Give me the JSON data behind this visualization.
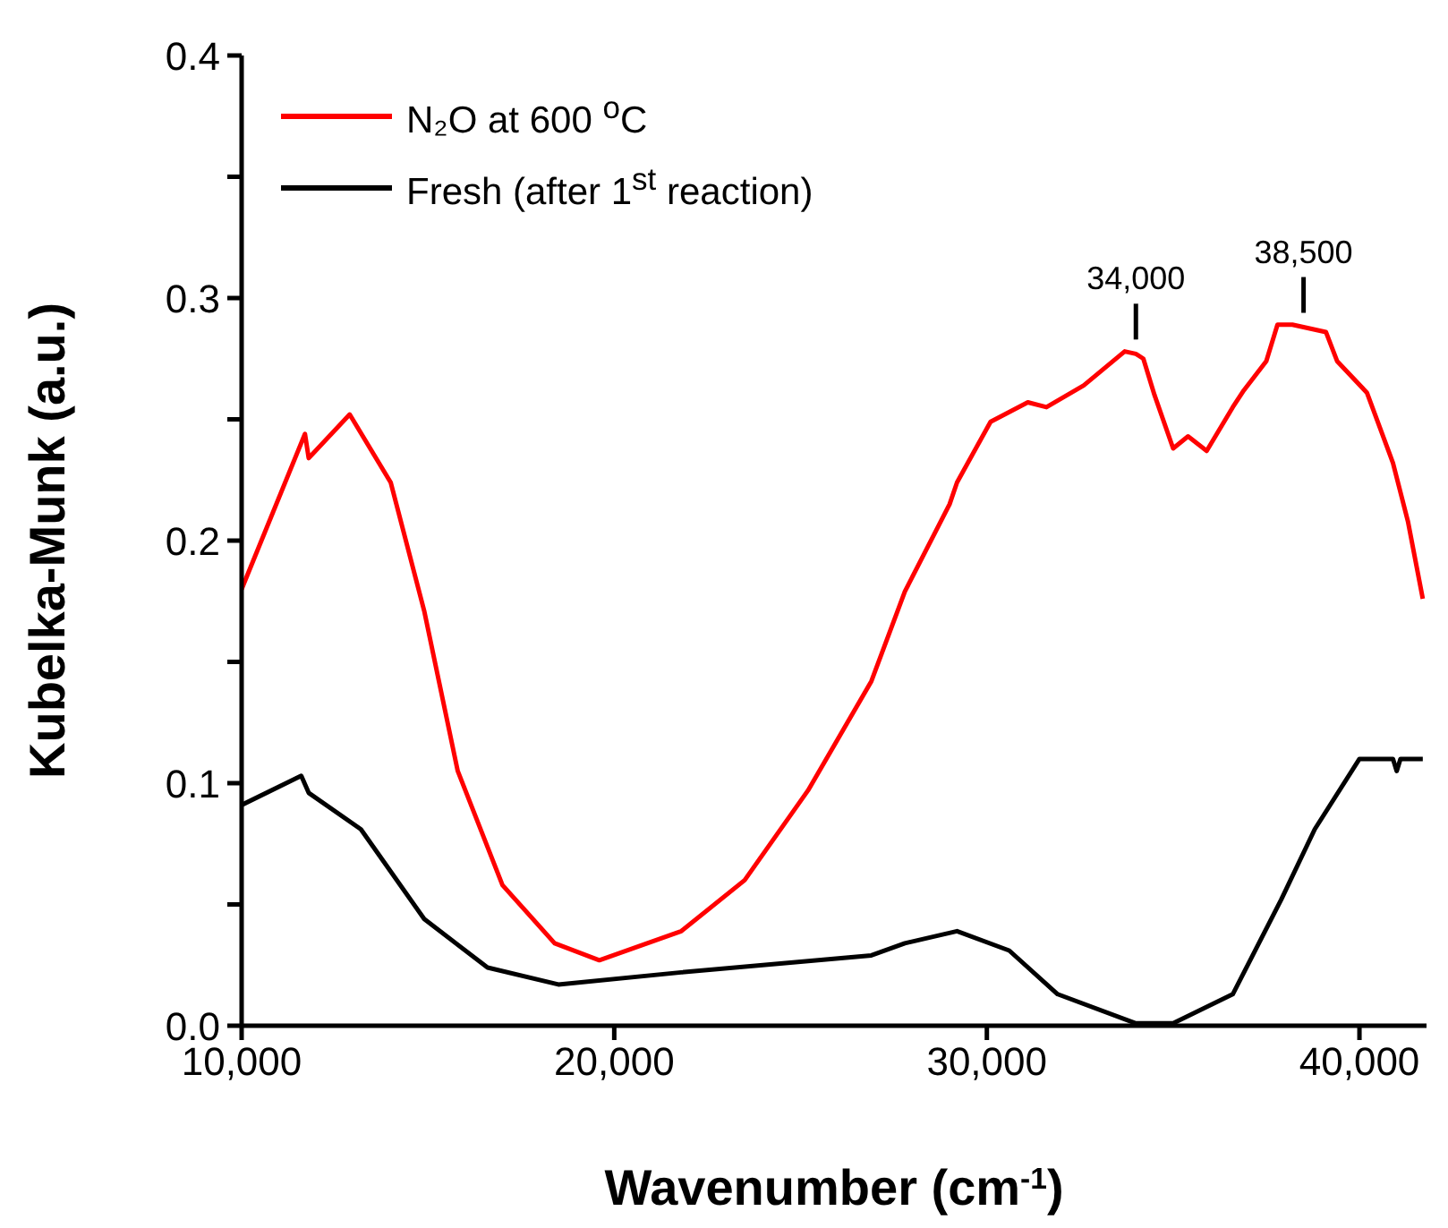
{
  "chart_data": {
    "type": "line",
    "xlabel": "Wavenumber (cm$^{-1}$)",
    "ylabel": "Kubelka-Munk (a.u.)",
    "xlim": [
      10000,
      41800
    ],
    "ylim": [
      0,
      0.4
    ],
    "xticks": [
      {
        "value": 10000,
        "label": "10,000"
      },
      {
        "value": 20000,
        "label": "20,000"
      },
      {
        "value": 30000,
        "label": "30,000"
      },
      {
        "value": 40000,
        "label": "40,000"
      }
    ],
    "yticks": [
      {
        "value": 0,
        "label": "0.0"
      },
      {
        "value": 0.05,
        "label": null
      },
      {
        "value": 0.1,
        "label": "0.1"
      },
      {
        "value": 0.15,
        "label": null
      },
      {
        "value": 0.2,
        "label": "0.2"
      },
      {
        "value": 0.25,
        "label": null
      },
      {
        "value": 0.3,
        "label": "0.3"
      },
      {
        "value": 0.35,
        "label": null
      },
      {
        "value": 0.4,
        "label": "0.4"
      }
    ],
    "legend": "top left",
    "marker": "none",
    "line_style": "solid",
    "grid": false,
    "series": [
      {
        "name": "N₂O at 600 $^{o}$C",
        "color": "#ff0000",
        "x": [
          10000,
          11700,
          11800,
          12900,
          14000,
          14900,
          15800,
          17000,
          18400,
          19600,
          21800,
          23500,
          25200,
          26900,
          27800,
          29000,
          29200,
          30100,
          31100,
          31600,
          32600,
          33700,
          34000,
          34200,
          34500,
          35000,
          35400,
          35900,
          36600,
          36900,
          37500,
          37800,
          38200,
          38500,
          39100,
          39400,
          40200,
          40900,
          41300,
          41700
        ],
        "values": [
          0.18,
          0.244,
          0.234,
          0.252,
          0.224,
          0.171,
          0.105,
          0.058,
          0.034,
          0.027,
          0.039,
          0.06,
          0.097,
          0.142,
          0.179,
          0.215,
          0.224,
          0.249,
          0.257,
          0.255,
          0.264,
          0.278,
          0.277,
          0.275,
          0.26,
          0.238,
          0.243,
          0.237,
          0.255,
          0.262,
          0.274,
          0.289,
          0.289,
          0.288,
          0.286,
          0.274,
          0.261,
          0.232,
          0.208,
          0.176
        ]
      },
      {
        "name": "Fresh (after 1$^{st}$ reaction)",
        "color": "#000000",
        "x": [
          10000,
          11600,
          11800,
          13200,
          14900,
          16600,
          18500,
          21800,
          26900,
          27800,
          29200,
          30600,
          31900,
          34000,
          35000,
          36600,
          37900,
          38800,
          40000,
          40900,
          41000,
          41100,
          41700
        ],
        "values": [
          0.091,
          0.103,
          0.096,
          0.081,
          0.044,
          0.024,
          0.017,
          0.022,
          0.029,
          0.034,
          0.039,
          0.031,
          0.013,
          0.001,
          0.001,
          0.013,
          0.052,
          0.081,
          0.11,
          0.11,
          0.105,
          0.11,
          0.11
        ]
      }
    ],
    "annotations": [
      {
        "text": "34,000",
        "x": 34000,
        "y": 0.277
      },
      {
        "text": "38,500",
        "x": 38500,
        "y": 0.288
      }
    ]
  }
}
